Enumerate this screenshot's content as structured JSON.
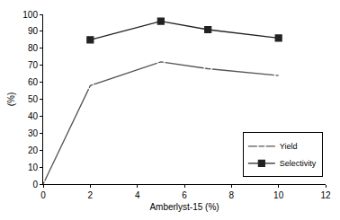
{
  "chart_data": {
    "type": "line",
    "x_label": "Amberlyst-15 (%)",
    "y_label": "(%)",
    "x": [
      0,
      2,
      5,
      7,
      10
    ],
    "series": [
      {
        "name": "Yield",
        "color": "#555555",
        "marker": "diamond-open",
        "values": [
          0,
          58,
          72,
          68,
          64
        ]
      },
      {
        "name": "Selectivity",
        "color": "#222222",
        "marker": "square",
        "values": [
          null,
          85,
          96,
          91,
          86
        ]
      }
    ],
    "xlim": [
      0,
      12
    ],
    "xticks": [
      0,
      2,
      4,
      6,
      8,
      10,
      12
    ],
    "ylim": [
      0,
      100
    ],
    "yticks": [
      0,
      10,
      20,
      30,
      40,
      50,
      60,
      70,
      80,
      90,
      100
    ],
    "grid": false,
    "legend": "lower right"
  }
}
